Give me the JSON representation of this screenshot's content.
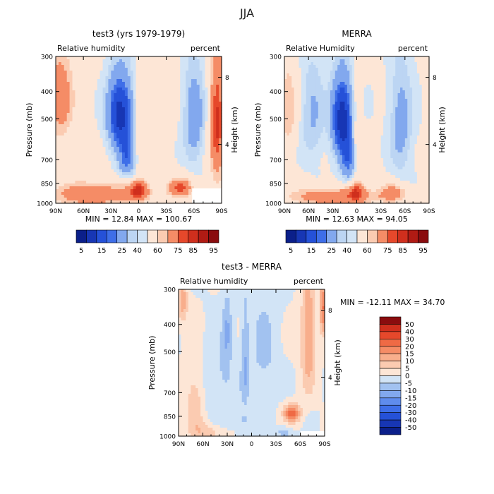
{
  "figure": {
    "title": "JJA",
    "colors": {
      "pos_ramp": [
        "#fde6d6",
        "#fbcbb1",
        "#f8ae8c",
        "#f58c66",
        "#ef6a45",
        "#e6482b",
        "#cf2f1d",
        "#b01b14",
        "#8a0c0e"
      ],
      "neg_ramp": [
        "#d2e4f6",
        "#bcd5f3",
        "#a2c2f0",
        "#82a8ee",
        "#5f8ced",
        "#3e6ee8",
        "#2551d8",
        "#1736b4",
        "#0b1f8a"
      ],
      "mid_color": "#f7f7f7",
      "mask_color": "#ffffff"
    }
  },
  "chart_data": [
    {
      "type": "heatmap",
      "title": "test3 (yrs 1979-1979)",
      "subtitle_left": "Relative humidity",
      "subtitle_right": "percent",
      "ylabel": "Pressure (mb)",
      "ylabel_right": "Height (km)",
      "x_ticks": [
        "90N",
        "60N",
        "30N",
        "0",
        "30S",
        "60S",
        "90S"
      ],
      "y_ticks": [
        "300",
        "400",
        "500",
        "700",
        "850",
        "1000"
      ],
      "y_right_ticks": [
        "8",
        "4"
      ],
      "stats": "MIN =  12.84   MAX = 100.67",
      "colorbar": {
        "orientation": "horizontal",
        "labels": [
          "5",
          "15",
          "25",
          "40",
          "60",
          "75",
          "85",
          "95"
        ]
      },
      "field": {
        "kind": "full",
        "min": 12.84,
        "max": 100.67,
        "base": 57,
        "features": [
          {
            "lat": 20,
            "p": 480,
            "a": -42,
            "sx": 14,
            "sp": 150
          },
          {
            "lat": 12,
            "p": 700,
            "a": -22,
            "sx": 10,
            "sp": 120
          },
          {
            "lat": -60,
            "p": 500,
            "a": -18,
            "sx": 12,
            "sp": 220
          },
          {
            "lat": -85,
            "p": 520,
            "a": 30,
            "sx": 8,
            "sp": 280
          },
          {
            "lat": 85,
            "p": 420,
            "a": 20,
            "sx": 14,
            "sp": 160
          },
          {
            "lat": 50,
            "p": 930,
            "a": 22,
            "sx": 45,
            "sp": 90
          },
          {
            "lat": 0,
            "p": 900,
            "a": 25,
            "sx": 12,
            "sp": 80
          },
          {
            "lat": -45,
            "p": 880,
            "a": 25,
            "sx": 14,
            "sp": 70
          },
          {
            "lat": 0,
            "p": 580,
            "a": 8,
            "sx": 6,
            "sp": 250
          }
        ],
        "masks": [
          {
            "lat1": -58,
            "lat2": -90,
            "p1": 885,
            "p2": 1000
          }
        ]
      }
    },
    {
      "type": "heatmap",
      "title": "MERRA",
      "subtitle_left": "Relative Humidity",
      "subtitle_right": "percent",
      "ylabel": "Pressure (mb)",
      "ylabel_right": "Height (km)",
      "x_ticks": [
        "90N",
        "60N",
        "30N",
        "0",
        "30S",
        "60S",
        "90S"
      ],
      "y_ticks": [
        "300",
        "400",
        "500",
        "700",
        "850",
        "1000"
      ],
      "y_right_ticks": [
        "8",
        "4"
      ],
      "stats": "MIN =  12.63   MAX =  94.05",
      "colorbar": {
        "orientation": "horizontal",
        "labels": [
          "5",
          "15",
          "25",
          "40",
          "60",
          "75",
          "85",
          "95"
        ]
      },
      "field": {
        "kind": "full",
        "min": 12.63,
        "max": 94.05,
        "base": 56,
        "features": [
          {
            "lat": 18,
            "p": 500,
            "a": -44,
            "sx": 13,
            "sp": 160
          },
          {
            "lat": 10,
            "p": 720,
            "a": -20,
            "sx": 10,
            "sp": 130
          },
          {
            "lat": -55,
            "p": 520,
            "a": -15,
            "sx": 14,
            "sp": 240
          },
          {
            "lat": 55,
            "p": 480,
            "a": -12,
            "sx": 14,
            "sp": 200
          },
          {
            "lat": 85,
            "p": 460,
            "a": 14,
            "sx": 10,
            "sp": 180
          },
          {
            "lat": 30,
            "p": 950,
            "a": 22,
            "sx": 55,
            "sp": 70
          },
          {
            "lat": 0,
            "p": 900,
            "a": 18,
            "sx": 12,
            "sp": 80
          },
          {
            "lat": -45,
            "p": 920,
            "a": 18,
            "sx": 18,
            "sp": 70
          },
          {
            "lat": 0,
            "p": 600,
            "a": 10,
            "sx": 6,
            "sp": 260
          }
        ],
        "masks": []
      }
    },
    {
      "type": "heatmap",
      "title": "test3 - MERRA",
      "subtitle_left": "Relative humidity",
      "subtitle_right": "percent",
      "ylabel": "Pressure (mb)",
      "ylabel_right": "Height (km)",
      "x_ticks": [
        "90N",
        "60N",
        "30N",
        "0",
        "30S",
        "60S",
        "90S"
      ],
      "y_ticks": [
        "300",
        "400",
        "500",
        "700",
        "850",
        "1000"
      ],
      "y_right_ticks": [
        "8",
        "4"
      ],
      "stats": "MIN = -12.11   MAX =  34.70",
      "colorbar": {
        "orientation": "vertical",
        "labels": [
          "50",
          "40",
          "30",
          "20",
          "15",
          "10",
          "5",
          "0",
          "-5",
          "-10",
          "-15",
          "-20",
          "-30",
          "-40",
          "-50"
        ]
      },
      "field": {
        "kind": "diff",
        "min": -12.11,
        "max": 34.7,
        "base": 0,
        "features": [
          {
            "lat": -50,
            "p": 830,
            "a": 24,
            "sx": 10,
            "sp": 60
          },
          {
            "lat": -70,
            "p": 450,
            "a": 16,
            "sx": 9,
            "sp": 220
          },
          {
            "lat": -88,
            "p": 350,
            "a": 20,
            "sx": 4,
            "sp": 80
          },
          {
            "lat": 85,
            "p": 330,
            "a": 14,
            "sx": 6,
            "sp": 60
          },
          {
            "lat": 70,
            "p": 760,
            "a": 9,
            "sx": 12,
            "sp": 240
          },
          {
            "lat": 55,
            "p": 960,
            "a": 8,
            "sx": 20,
            "sp": 60
          },
          {
            "lat": 30,
            "p": 420,
            "a": -10,
            "sx": 6,
            "sp": 120
          },
          {
            "lat": 8,
            "p": 550,
            "a": -9,
            "sx": 5,
            "sp": 260
          },
          {
            "lat": -15,
            "p": 500,
            "a": -6,
            "sx": 18,
            "sp": 250
          },
          {
            "lat": 40,
            "p": 650,
            "a": -6,
            "sx": 22,
            "sp": 200
          },
          {
            "lat": 15,
            "p": 880,
            "a": -5,
            "sx": 20,
            "sp": 60
          },
          {
            "lat": -40,
            "p": 970,
            "a": -9,
            "sx": 8,
            "sp": 40
          }
        ],
        "masks": [
          {
            "lat1": -60,
            "lat2": -90,
            "p1": 960,
            "p2": 1000
          }
        ]
      }
    }
  ]
}
